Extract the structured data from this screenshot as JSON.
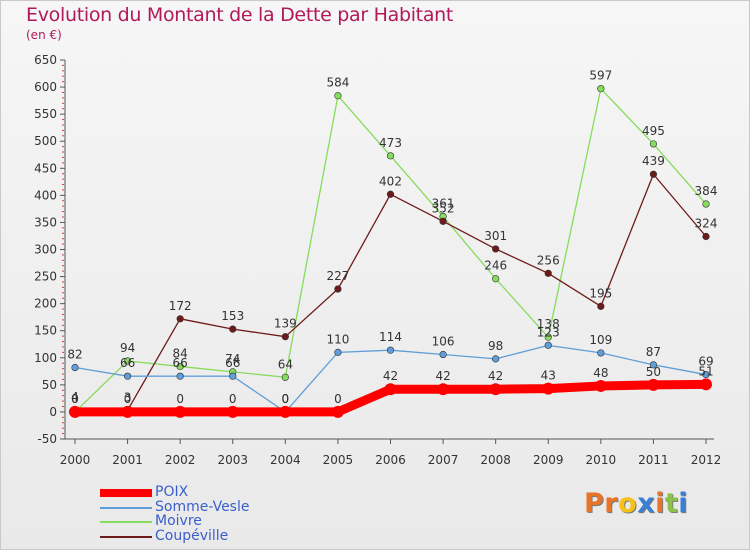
{
  "title": "Evolution du Montant de la Dette par Habitant",
  "unit": "(en €)",
  "logo": {
    "text": "Proxiti",
    "letter_colors": [
      "#e8742a",
      "#e8742a",
      "#f4c21b",
      "#3a7fd5",
      "#e8742a",
      "#8bc34a",
      "#3a7fd5"
    ]
  },
  "chart_data": {
    "type": "line",
    "title": "Evolution du Montant de la Dette par Habitant",
    "ylabel": "(en €)",
    "xlabel": "",
    "x": [
      "2000",
      "2001",
      "2002",
      "2003",
      "2004",
      "2005",
      "2006",
      "2007",
      "2008",
      "2009",
      "2010",
      "2011",
      "2012"
    ],
    "ylim": [
      -50,
      650
    ],
    "yticks": [
      "-50",
      "0",
      "50",
      "100",
      "150",
      "200",
      "250",
      "300",
      "350",
      "400",
      "450",
      "500",
      "550",
      "600",
      "650"
    ],
    "grid": false,
    "legend": "bottom-left",
    "series": [
      {
        "name": "POIX",
        "color": "#ff0000",
        "values": [
          0,
          0,
          0,
          0,
          0,
          0,
          42,
          42,
          42,
          43,
          48,
          50,
          51
        ],
        "labels": [
          "0",
          "0",
          "0",
          "0",
          "0",
          "0",
          "42",
          "42",
          "42",
          "43",
          "48",
          "50",
          "51"
        ]
      },
      {
        "name": "Somme-Vesle",
        "color": "#5f9ed8",
        "values": [
          82,
          66,
          66,
          66,
          0,
          110,
          114,
          106,
          98,
          123,
          109,
          87,
          69
        ],
        "labels": [
          "82",
          "66",
          "66",
          "66",
          "0",
          "110",
          "114",
          "106",
          "98",
          "123",
          "109",
          "87",
          "69"
        ]
      },
      {
        "name": "Moivre",
        "color": "#86dc5c",
        "values": [
          0,
          94,
          84,
          74,
          64,
          584,
          473,
          361,
          246,
          138,
          597,
          495,
          384
        ],
        "labels": [
          "0",
          "94",
          "84",
          "74",
          "64",
          "584",
          "473",
          "361",
          "246",
          "138",
          "597",
          "495",
          "384"
        ]
      },
      {
        "name": "Coupéville",
        "color": "#6e1a1a",
        "values": [
          4,
          3,
          172,
          153,
          139,
          227,
          402,
          352,
          301,
          256,
          195,
          439,
          324
        ],
        "labels": [
          "4",
          "3",
          "172",
          "153",
          "139",
          "227",
          "402",
          "352",
          "301",
          "256",
          "195",
          "439",
          "324"
        ]
      }
    ]
  }
}
